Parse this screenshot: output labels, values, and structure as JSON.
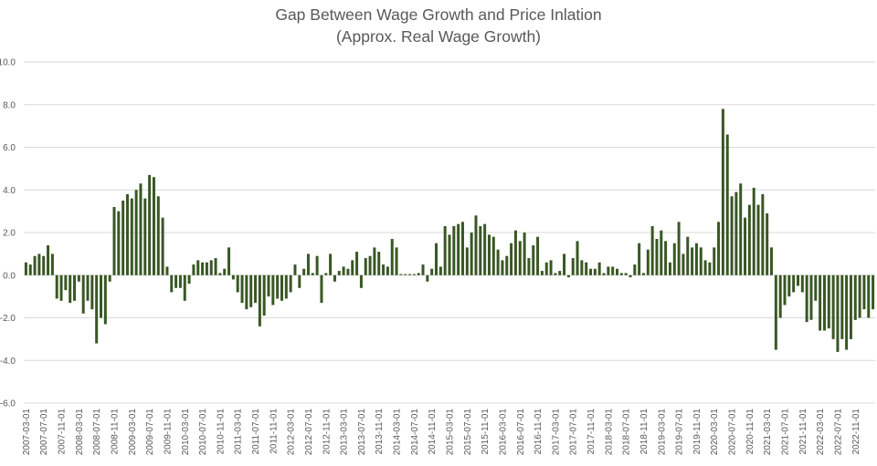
{
  "chart_data": {
    "type": "bar",
    "title": "Gap Between Wage Growth and Price Inlation",
    "subtitle": "(Approx. Real Wage Growth)",
    "xlabel": "",
    "ylabel": "",
    "ylim": [
      -6,
      10
    ],
    "yticks": [
      -6,
      -4,
      -2,
      0,
      2,
      4,
      6,
      8,
      10
    ],
    "ytick_labels": [
      "-6.0",
      "-4.0",
      "-2.0",
      "0.0",
      "2.0",
      "4.0",
      "6.0",
      "8.0",
      "10.0"
    ],
    "grid": true,
    "legend": "none",
    "bar_color": "#385723",
    "start_month": "2007-03",
    "tick_labels": [
      "2007-03-01",
      "2007-07-01",
      "2007-11-01",
      "2008-03-01",
      "2008-07-01",
      "2008-11-01",
      "2009-03-01",
      "2009-07-01",
      "2009-11-01",
      "2010-03-01",
      "2010-07-01",
      "2010-11-01",
      "2011-03-01",
      "2011-07-01",
      "2011-11-01",
      "2012-03-01",
      "2012-07-01",
      "2012-11-01",
      "2013-03-01",
      "2013-07-01",
      "2013-11-01",
      "2014-03-01",
      "2014-07-01",
      "2014-11-01",
      "2015-03-01",
      "2015-07-01",
      "2015-11-01",
      "2016-03-01",
      "2016-07-01",
      "2016-11-01",
      "2017-03-01",
      "2017-07-01",
      "2017-11-01",
      "2018-03-01",
      "2018-07-01",
      "2018-11-01",
      "2019-03-01",
      "2019-07-01",
      "2019-11-01",
      "2020-03-01",
      "2020-07-01",
      "2020-11-01",
      "2021-03-01",
      "2021-07-01",
      "2021-11-01",
      "2022-03-01",
      "2022-07-01",
      "2022-11-01"
    ],
    "values": [
      0.6,
      0.5,
      0.9,
      1.0,
      0.9,
      1.4,
      1.0,
      -1.1,
      -1.2,
      -0.7,
      -1.3,
      -1.2,
      -0.3,
      -1.8,
      -1.2,
      -1.6,
      -3.2,
      -2.0,
      -2.3,
      -0.3,
      3.2,
      3.0,
      3.5,
      3.8,
      3.6,
      4.0,
      4.3,
      3.6,
      4.7,
      4.6,
      3.7,
      2.7,
      0.4,
      -0.8,
      -0.6,
      -0.6,
      -1.2,
      -0.4,
      0.5,
      0.7,
      0.6,
      0.6,
      0.7,
      0.8,
      0.1,
      0.3,
      1.3,
      -0.2,
      -0.8,
      -1.3,
      -1.6,
      -1.5,
      -1.3,
      -2.4,
      -1.9,
      -1.0,
      -1.4,
      -1.1,
      -1.2,
      -1.1,
      -0.8,
      0.5,
      -0.6,
      0.3,
      1.0,
      0.1,
      0.9,
      -1.3,
      0.1,
      1.0,
      -0.3,
      0.2,
      0.4,
      0.3,
      0.7,
      1.1,
      -0.6,
      0.8,
      0.9,
      1.3,
      1.1,
      0.5,
      0.4,
      1.7,
      1.3,
      0.05,
      0.05,
      0.05,
      0.05,
      0.1,
      0.5,
      -0.3,
      0.3,
      1.5,
      0.4,
      2.3,
      1.9,
      2.3,
      2.4,
      2.5,
      1.3,
      2.0,
      2.8,
      2.3,
      2.4,
      1.9,
      1.8,
      1.2,
      0.7,
      0.9,
      1.5,
      2.1,
      1.6,
      2.0,
      0.8,
      1.4,
      1.8,
      0.2,
      0.6,
      0.7,
      0.1,
      0.2,
      1.0,
      -0.1,
      0.8,
      1.6,
      0.7,
      0.6,
      0.3,
      0.3,
      0.6,
      0.1,
      0.4,
      0.4,
      0.3,
      0.1,
      0.1,
      -0.1,
      0.5,
      1.5,
      0.1,
      1.2,
      2.3,
      1.7,
      2.1,
      1.6,
      0.6,
      1.5,
      2.5,
      1.0,
      1.8,
      1.3,
      1.5,
      1.3,
      0.7,
      0.6,
      1.3,
      2.5,
      7.8,
      6.6,
      3.7,
      3.9,
      4.3,
      2.7,
      3.3,
      4.1,
      3.3,
      3.8,
      2.9,
      1.3,
      -3.5,
      -2.0,
      -1.4,
      -1.0,
      -0.8,
      -0.5,
      -0.8,
      -2.2,
      -2.1,
      -1.2,
      -2.6,
      -2.6,
      -2.5,
      -3.0,
      -3.6,
      -3.0,
      -3.5,
      -3.0,
      -2.1,
      -2.0,
      -1.6,
      -2.0,
      -1.6
    ]
  }
}
